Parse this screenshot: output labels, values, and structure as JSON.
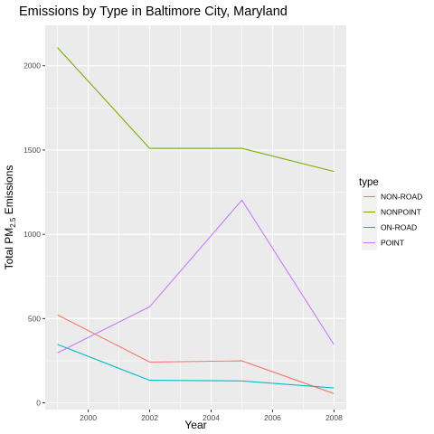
{
  "chart_data": {
    "type": "line",
    "title": "Emissions by Type in Baltimore City, Maryland",
    "xlabel": "Year",
    "ylabel": {
      "prefix": "Total PM",
      "subscript": "2.5",
      "suffix": " Emissions"
    },
    "xlim": [
      1998.6,
      2008.4
    ],
    "ylim": [
      -40,
      2240
    ],
    "x": [
      1999,
      2002,
      2005,
      2008
    ],
    "x_ticks": [
      2000,
      2002,
      2004,
      2006,
      2008
    ],
    "y_ticks": [
      0,
      500,
      1000,
      1500,
      2000
    ],
    "grid": true,
    "legend": {
      "title": "type",
      "placement": "right"
    },
    "series": [
      {
        "name": "NON-ROAD",
        "color": "#F8766D",
        "values": [
          522,
          242,
          249,
          55
        ]
      },
      {
        "name": "NONPOINT",
        "color": "#7CAE00",
        "values": [
          2108,
          1510,
          1510,
          1373
        ]
      },
      {
        "name": "ON-ROAD",
        "color": "#00BFC4",
        "values": [
          347,
          134,
          130,
          88
        ]
      },
      {
        "name": "POINT",
        "color": "#C77CFF",
        "values": [
          297,
          570,
          1203,
          345
        ]
      }
    ]
  }
}
